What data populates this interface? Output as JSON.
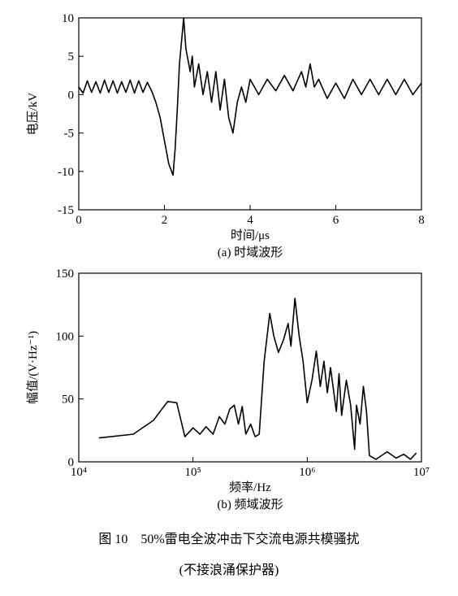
{
  "chart_data": [
    {
      "type": "line",
      "caption": "(a) 时域波形",
      "xlabel": "时间/μs",
      "ylabel": "电压/kV",
      "xscale": "linear",
      "xlim": [
        0,
        8
      ],
      "ylim": [
        -15,
        10
      ],
      "xticks": [
        0,
        2,
        4,
        6,
        8
      ],
      "yticks": [
        -15,
        -10,
        -5,
        0,
        5,
        10
      ],
      "color": "#000000",
      "x": [
        0,
        0.1,
        0.2,
        0.3,
        0.4,
        0.5,
        0.6,
        0.7,
        0.8,
        0.9,
        1.0,
        1.1,
        1.2,
        1.3,
        1.4,
        1.5,
        1.6,
        1.7,
        1.8,
        1.9,
        2.0,
        2.1,
        2.2,
        2.25,
        2.3,
        2.35,
        2.45,
        2.5,
        2.6,
        2.65,
        2.7,
        2.8,
        2.9,
        3.0,
        3.1,
        3.2,
        3.3,
        3.4,
        3.5,
        3.6,
        3.7,
        3.8,
        3.9,
        4.0,
        4.2,
        4.4,
        4.6,
        4.8,
        5.0,
        5.2,
        5.3,
        5.4,
        5.5,
        5.6,
        5.8,
        6.0,
        6.2,
        6.4,
        6.6,
        6.8,
        7.0,
        7.2,
        7.4,
        7.6,
        7.8,
        8.0
      ],
      "values": [
        1,
        0.2,
        1.8,
        0.3,
        1.7,
        0.2,
        1.9,
        0.3,
        1.8,
        0.2,
        1.7,
        0.3,
        1.9,
        0.2,
        1.8,
        0.3,
        1.6,
        0.5,
        -1,
        -3,
        -6,
        -9,
        -10.5,
        -7,
        -2,
        4,
        10,
        6,
        3,
        5,
        1,
        4,
        0,
        3,
        -1,
        3,
        -2,
        2,
        -3,
        -5,
        -1,
        1,
        -1,
        2,
        0,
        2,
        0.5,
        2.5,
        0.5,
        3,
        1,
        4,
        1,
        2,
        -0.5,
        1.5,
        -0.5,
        2,
        0,
        2,
        0,
        2,
        0,
        2,
        0,
        1.5
      ]
    },
    {
      "type": "line",
      "caption": "(b) 频域波形",
      "xlabel": "频率/Hz",
      "ylabel": "幅值/(V·Hz⁻¹)",
      "xscale": "log",
      "xlim": [
        10000,
        10000000
      ],
      "ylim": [
        0,
        150
      ],
      "xticks": [
        {
          "value": 10000,
          "label": "10⁴"
        },
        {
          "value": 100000,
          "label": "10⁵"
        },
        {
          "value": 1000000,
          "label": "10⁶"
        },
        {
          "value": 10000000,
          "label": "10⁷"
        }
      ],
      "yticks": [
        0,
        50,
        100,
        150
      ],
      "color": "#000000",
      "x": [
        15000,
        30000,
        45000,
        60000,
        72000,
        85000,
        100000,
        115000,
        130000,
        150000,
        170000,
        190000,
        210000,
        230000,
        250000,
        270000,
        290000,
        320000,
        350000,
        380000,
        420000,
        470000,
        510000,
        560000,
        620000,
        680000,
        720000,
        780000,
        850000,
        920000,
        1000000,
        1100000,
        1200000,
        1300000,
        1400000,
        1500000,
        1600000,
        1800000,
        1900000,
        2000000,
        2200000,
        2400000,
        2600000,
        2700000,
        2900000,
        3100000,
        3300000,
        3500000,
        4000000,
        5000000,
        6000000,
        7000000,
        8000000,
        9000000
      ],
      "values": [
        19,
        22,
        33,
        48,
        47,
        20,
        27,
        22,
        28,
        22,
        36,
        30,
        42,
        45,
        30,
        44,
        22,
        30,
        20,
        22,
        80,
        118,
        100,
        87,
        97,
        110,
        92,
        130,
        100,
        80,
        47,
        65,
        88,
        60,
        80,
        55,
        75,
        40,
        70,
        37,
        65,
        45,
        10,
        45,
        30,
        60,
        40,
        5,
        2,
        8,
        3,
        6,
        2,
        7
      ]
    }
  ],
  "caption": {
    "line1": "图 10　50%雷电全波冲击下交流电源共模骚扰",
    "line2": "(不接浪涌保护器)"
  }
}
